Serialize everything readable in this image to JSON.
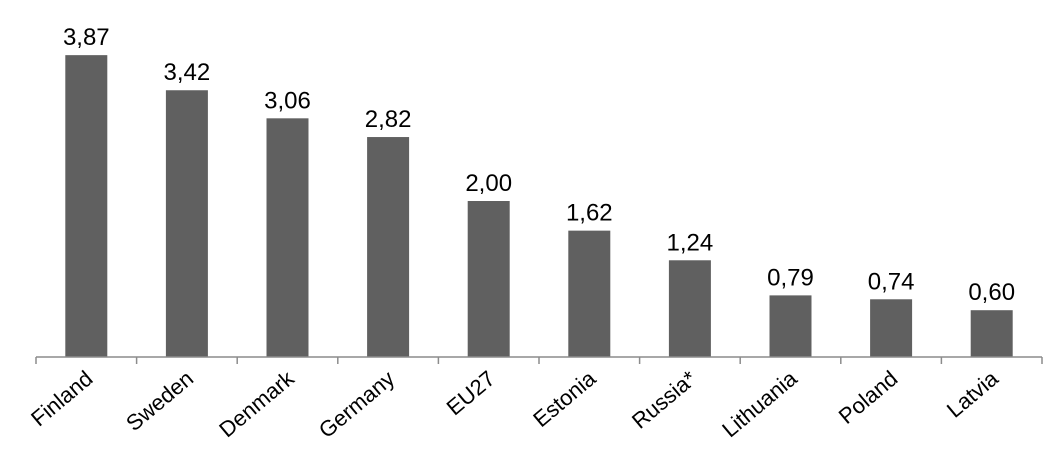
{
  "chart_data": {
    "type": "bar",
    "categories": [
      "Finland",
      "Sweden",
      "Denmark",
      "Germany",
      "EU27",
      "Estonia",
      "Russia*",
      "Lithuania",
      "Poland",
      "Latvia"
    ],
    "values": [
      3.87,
      3.42,
      3.06,
      2.82,
      2.0,
      1.62,
      1.24,
      0.79,
      0.74,
      0.6
    ],
    "value_labels": [
      "3,87",
      "3,42",
      "3,06",
      "2,82",
      "2,00",
      "1,62",
      "1,24",
      "0,79",
      "0,74",
      "0,60"
    ],
    "title": "",
    "xlabel": "",
    "ylabel": "",
    "ylim": [
      0,
      4
    ],
    "grid": false,
    "legend": "none",
    "colors": {
      "bar": "#606060",
      "axis": "#8c8c8c",
      "text": "#000000"
    }
  }
}
